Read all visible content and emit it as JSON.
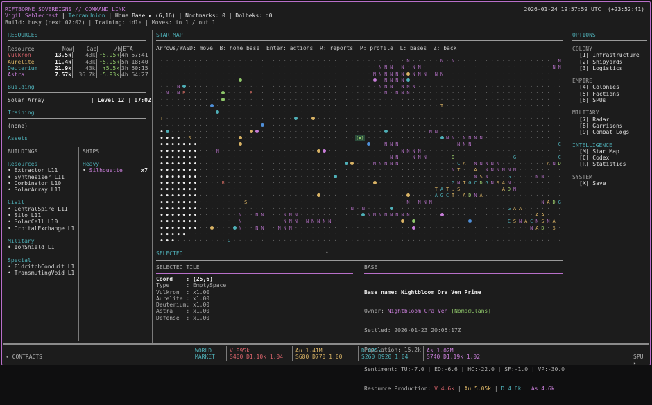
{
  "header": {
    "title": "RIFTBORNE SOVEREIGNS // COMMAND LINK",
    "player": "Vigil Sablecrest",
    "faction": "TerranUnion",
    "location": "Home Base ▸ (6,16)",
    "noctmarks": "Noctmarks: 0",
    "dolbeks": "Dolbeks: d0",
    "status_line": "Build: busy (next 07:02) | Training: idle | Moves: in 1 / out 1",
    "timestamp": "2026-01-24 19:57:59 UTC  (+23:52:41)"
  },
  "resources": {
    "title": "RESOURCES",
    "headers": [
      "Resource",
      "Now",
      "Cap",
      "/h",
      "ETA"
    ],
    "rows": [
      {
        "name": "Vulkron",
        "now": "13.5k",
        "cap": "43k",
        "rate": "↑5.95k",
        "eta": "4h 57:41",
        "color": "#d9636b"
      },
      {
        "name": "Aurelite",
        "now": "11.4k",
        "cap": "43k",
        "rate": "↑5.95k",
        "eta": "5h 18:40",
        "color": "#d9b365"
      },
      {
        "name": "Deuterium",
        "now": "21.9k",
        "cap": "43k",
        "rate": "↑5.5k",
        "eta": "3h 50:15",
        "color": "#4fb0b8"
      },
      {
        "name": "Astra",
        "now": "7.57k",
        "cap": "36.7k",
        "rate": "↑5.93k",
        "eta": "4h 54:27",
        "color": "#c77dd8"
      }
    ]
  },
  "building": {
    "title": "Building",
    "name": "Solar Array",
    "level": "Level 12",
    "time": "07:02"
  },
  "training": {
    "title": "Training",
    "value": "(none)"
  },
  "assets": {
    "title": "Assets",
    "buildings_header": "BUILDINGS",
    "ships_header": "SHIPS",
    "groups": [
      {
        "name": "Resources",
        "items": [
          "Extractor L11",
          "Synthesiser L11",
          "Combinator L10",
          "SolarArray L11"
        ]
      },
      {
        "name": "Civil",
        "items": [
          "CentralSpire L11",
          "Silo L11",
          "SolarCell L10",
          "OrbitalExchange L1"
        ]
      },
      {
        "name": "Military",
        "items": [
          "IonShield L1"
        ]
      },
      {
        "name": "Special",
        "items": [
          "EldritchConduit L1",
          "TransmutingVoid L1"
        ]
      }
    ],
    "ship_groups": [
      {
        "name": "Heavy",
        "items": [
          {
            "name": "Silhouette",
            "count": "x7"
          }
        ]
      }
    ]
  },
  "starmap": {
    "title": "STAR MAP",
    "help": "Arrows/WASD: move  B: home base  Enter: actions  R: reports  P: profile  L: bases  Z: back",
    "cursor_glyph": "[●]"
  },
  "selected": {
    "title": "SELECTED",
    "tile": {
      "title": "SELECTED TILE",
      "rows": [
        {
          "label": "Coord    ",
          "value": "(25,6)"
        },
        {
          "label": "Type     ",
          "value": "EmptySpace"
        },
        {
          "label": "Vulkron  ",
          "value": "x1.00"
        },
        {
          "label": "Aurelite ",
          "value": "x1.00"
        },
        {
          "label": "Deuterium",
          "value": "x1.00"
        },
        {
          "label": "Astra    ",
          "value": "x1.00"
        },
        {
          "label": "Defense  ",
          "value": "x1.00"
        }
      ]
    },
    "base": {
      "title": "BASE",
      "name_label": "Base name:",
      "name": "Nightbloom Ora Ven Prime",
      "owner_label": "Owner:",
      "owner": "Nightbloom Ora Ven",
      "owner_faction": "[NomadClans]",
      "settled": "Settled: 2026-01-23 20:05:17Z",
      "population": "Population: 15.2k",
      "sentiment": "Sentiment: TU:-7.0 | ED:-6.6 | HC:-22.0 | SF:-1.0 | VP:-30.0",
      "production_label": "Resource Production:",
      "production": [
        {
          "text": "V 4.6k",
          "color": "#d9636b"
        },
        {
          "text": "Au 5.05k",
          "color": "#d9b365"
        },
        {
          "text": "D 4.6k",
          "color": "#4fb0b8"
        },
        {
          "text": "As 4.6k",
          "color": "#c77dd8"
        }
      ]
    }
  },
  "options": {
    "title": "OPTIONS",
    "sections": [
      {
        "name": "COLONY",
        "active": false,
        "items": [
          "[1] Infrastructure",
          "[2] Shipyards",
          "[3] Logistics"
        ]
      },
      {
        "name": "EMPIRE",
        "active": false,
        "items": [
          "[4] Colonies",
          "[5] Factions",
          "[6] SPUs"
        ]
      },
      {
        "name": "MILITARY",
        "active": false,
        "items": [
          "[7] Radar",
          "[8] Garrisons",
          "[9] Combat Logs"
        ]
      },
      {
        "name": "INTELLIGENCE",
        "active": true,
        "items": [
          "[M] Star Map",
          "[C] Codex",
          "[R] Statistics"
        ]
      },
      {
        "name": "SYSTEM",
        "active": false,
        "items": [
          "[X] Save"
        ]
      }
    ]
  },
  "footer": {
    "contracts": "◂ CONTRACTS",
    "world_market": [
      "WORLD",
      "MARKET"
    ],
    "market": [
      {
        "line1": "V 895k",
        "line2": "S400 D1.10k 1.04",
        "color": "#d9636b"
      },
      {
        "line1": "Au 1.41M",
        "line2": "S680 D770 1.00",
        "color": "#d9b365"
      },
      {
        "line1": "D 895k",
        "line2": "S260 D920 1.04",
        "color": "#4fb0b8"
      },
      {
        "line1": "As 1.02M",
        "line2": "S740 D1.19k 1.02",
        "color": "#c77dd8"
      }
    ],
    "spu": "SPU ▸"
  },
  "colors": {
    "accent": "#b86fc9",
    "title": "#4fb0b8",
    "background": "#1c1c1c"
  }
}
